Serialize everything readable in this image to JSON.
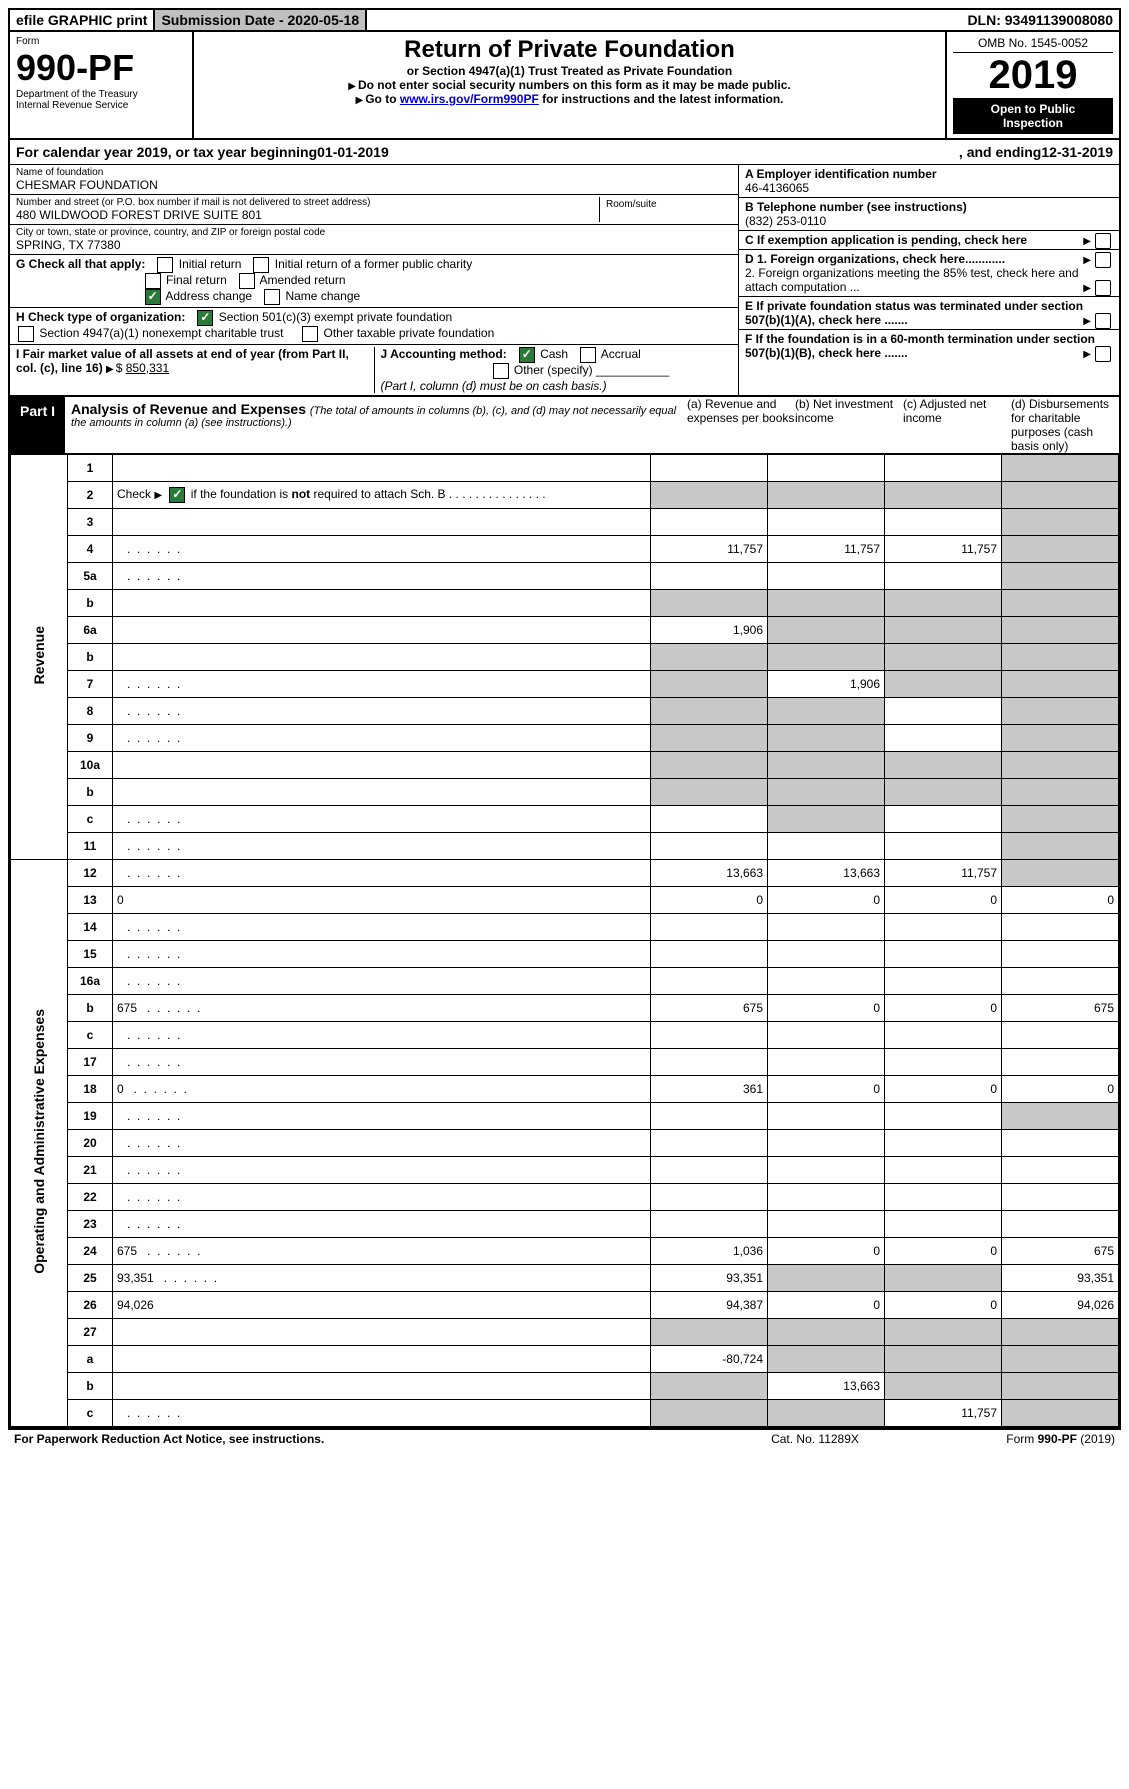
{
  "top": {
    "efile": "efile GRAPHIC print",
    "submission_label": "Submission Date - ",
    "submission_date": "2020-05-18",
    "dln_label": "DLN: ",
    "dln": "93491139008080"
  },
  "header": {
    "form_word": "Form",
    "form_number": "990-PF",
    "dept1": "Department of the Treasury",
    "dept2": "Internal Revenue Service",
    "title": "Return of Private Foundation",
    "subtitle": "or Section 4947(a)(1) Trust Treated as Private Foundation",
    "note1": "Do not enter social security numbers on this form as it may be made public.",
    "note2_pre": "Go to ",
    "note2_link": "www.irs.gov/Form990PF",
    "note2_post": " for instructions and the latest information.",
    "omb": "OMB No. 1545-0052",
    "year": "2019",
    "open1": "Open to Public",
    "open2": "Inspection"
  },
  "calyear": {
    "text1": "For calendar year 2019, or tax year beginning ",
    "begin": "01-01-2019",
    "text2": ", and ending ",
    "end": "12-31-2019"
  },
  "ident": {
    "name_label": "Name of foundation",
    "name": "CHESMAR FOUNDATION",
    "addr_label": "Number and street (or P.O. box number if mail is not delivered to street address)",
    "addr": "480 WILDWOOD FOREST DRIVE SUITE 801",
    "room_label": "Room/suite",
    "room": "",
    "city_label": "City or town, state or province, country, and ZIP or foreign postal code",
    "city": "SPRING, TX  77380",
    "a_label": "A Employer identification number",
    "a_val": "46-4136065",
    "b_label": "B Telephone number (see instructions)",
    "b_val": "(832) 253-0110",
    "c_label": "C If exemption application is pending, check here",
    "d1_label": "D 1. Foreign organizations, check here............",
    "d2_label": "2. Foreign organizations meeting the 85% test, check here and attach computation ...",
    "e_label": "E  If private foundation status was terminated under section 507(b)(1)(A), check here .......",
    "f_label": "F  If the foundation is in a 60-month termination under section 507(b)(1)(B), check here .......",
    "g_label": "G Check all that apply:",
    "g_opts": [
      "Initial return",
      "Initial return of a former public charity",
      "Final return",
      "Amended return",
      "Address change",
      "Name change"
    ],
    "h_label": "H Check type of organization:",
    "h_opts": [
      "Section 501(c)(3) exempt private foundation",
      "Section 4947(a)(1) nonexempt charitable trust",
      "Other taxable private foundation"
    ],
    "i_label": "I Fair market value of all assets at end of year (from Part II, col. (c), line 16) ",
    "i_val": "850,331",
    "j_label": "J Accounting method:",
    "j_opts": [
      "Cash",
      "Accrual"
    ],
    "j_other": "Other (specify)",
    "j_note": "(Part I, column (d) must be on cash basis.)"
  },
  "part1": {
    "label": "Part I",
    "title": "Analysis of Revenue and Expenses ",
    "title_note": "(The total of amounts in columns (b), (c), and (d) may not necessarily equal the amounts in column (a) (see instructions).)",
    "cols": {
      "a": "(a)   Revenue and expenses per books",
      "b": "(b)  Net investment income",
      "c": "(c)  Adjusted net income",
      "d": "(d)  Disbursements for charitable purposes (cash basis only)"
    }
  },
  "revenue_label": "Revenue",
  "expense_label": "Operating and Administrative Expenses",
  "rows": [
    {
      "n": "1",
      "d": "",
      "a": "",
      "b": "",
      "c": "",
      "shade": [
        "d"
      ]
    },
    {
      "n": "2",
      "d": "",
      "a": "",
      "b": "",
      "c": "",
      "shade": [
        "a",
        "b",
        "c",
        "d"
      ],
      "special": "check"
    },
    {
      "n": "3",
      "d": "",
      "a": "",
      "b": "",
      "c": "",
      "shade": [
        "d"
      ]
    },
    {
      "n": "4",
      "d": "",
      "a": "11,757",
      "b": "11,757",
      "c": "11,757",
      "shade": [
        "d"
      ],
      "dots": true
    },
    {
      "n": "5a",
      "d": "",
      "a": "",
      "b": "",
      "c": "",
      "shade": [
        "d"
      ],
      "dots": true
    },
    {
      "n": "b",
      "d": "",
      "a": "",
      "b": "",
      "c": "",
      "shade": [
        "a",
        "b",
        "c",
        "d"
      ]
    },
    {
      "n": "6a",
      "d": "",
      "a": "1,906",
      "b": "",
      "c": "",
      "shade": [
        "b",
        "c",
        "d"
      ]
    },
    {
      "n": "b",
      "d": "",
      "a": "",
      "b": "",
      "c": "",
      "shade": [
        "a",
        "b",
        "c",
        "d"
      ]
    },
    {
      "n": "7",
      "d": "",
      "a": "",
      "b": "1,906",
      "c": "",
      "shade": [
        "a",
        "c",
        "d"
      ],
      "dots": true
    },
    {
      "n": "8",
      "d": "",
      "a": "",
      "b": "",
      "c": "",
      "shade": [
        "a",
        "b",
        "d"
      ],
      "dots": true
    },
    {
      "n": "9",
      "d": "",
      "a": "",
      "b": "",
      "c": "",
      "shade": [
        "a",
        "b",
        "d"
      ],
      "dots": true
    },
    {
      "n": "10a",
      "d": "",
      "a": "",
      "b": "",
      "c": "",
      "shade": [
        "a",
        "b",
        "c",
        "d"
      ]
    },
    {
      "n": "b",
      "d": "",
      "a": "",
      "b": "",
      "c": "",
      "shade": [
        "a",
        "b",
        "c",
        "d"
      ]
    },
    {
      "n": "c",
      "d": "",
      "a": "",
      "b": "",
      "c": "",
      "shade": [
        "b",
        "d"
      ],
      "dots": true
    },
    {
      "n": "11",
      "d": "",
      "a": "",
      "b": "",
      "c": "",
      "shade": [
        "d"
      ],
      "dots": true
    },
    {
      "n": "12",
      "d": "",
      "a": "13,663",
      "b": "13,663",
      "c": "11,757",
      "shade": [
        "d"
      ],
      "dots": true
    },
    {
      "n": "13",
      "d": "0",
      "a": "0",
      "b": "0",
      "c": "0"
    },
    {
      "n": "14",
      "d": "",
      "a": "",
      "b": "",
      "c": "",
      "dots": true
    },
    {
      "n": "15",
      "d": "",
      "a": "",
      "b": "",
      "c": "",
      "dots": true
    },
    {
      "n": "16a",
      "d": "",
      "a": "",
      "b": "",
      "c": "",
      "dots": true
    },
    {
      "n": "b",
      "d": "675",
      "a": "675",
      "b": "0",
      "c": "0",
      "dots": true
    },
    {
      "n": "c",
      "d": "",
      "a": "",
      "b": "",
      "c": "",
      "dots": true
    },
    {
      "n": "17",
      "d": "",
      "a": "",
      "b": "",
      "c": "",
      "dots": true
    },
    {
      "n": "18",
      "d": "0",
      "a": "361",
      "b": "0",
      "c": "0",
      "dots": true
    },
    {
      "n": "19",
      "d": "",
      "a": "",
      "b": "",
      "c": "",
      "shade": [
        "d"
      ],
      "dots": true
    },
    {
      "n": "20",
      "d": "",
      "a": "",
      "b": "",
      "c": "",
      "dots": true
    },
    {
      "n": "21",
      "d": "",
      "a": "",
      "b": "",
      "c": "",
      "dots": true
    },
    {
      "n": "22",
      "d": "",
      "a": "",
      "b": "",
      "c": "",
      "dots": true
    },
    {
      "n": "23",
      "d": "",
      "a": "",
      "b": "",
      "c": "",
      "dots": true
    },
    {
      "n": "24",
      "d": "675",
      "a": "1,036",
      "b": "0",
      "c": "0",
      "dots": true
    },
    {
      "n": "25",
      "d": "93,351",
      "a": "93,351",
      "b": "",
      "c": "",
      "shade": [
        "b",
        "c"
      ],
      "dots": true
    },
    {
      "n": "26",
      "d": "94,026",
      "a": "94,387",
      "b": "0",
      "c": "0"
    },
    {
      "n": "27",
      "d": "",
      "a": "",
      "b": "",
      "c": "",
      "shade": [
        "a",
        "b",
        "c",
        "d"
      ]
    },
    {
      "n": "a",
      "d": "",
      "a": "-80,724",
      "b": "",
      "c": "",
      "shade": [
        "b",
        "c",
        "d"
      ]
    },
    {
      "n": "b",
      "d": "",
      "a": "",
      "b": "13,663",
      "c": "",
      "shade": [
        "a",
        "c",
        "d"
      ]
    },
    {
      "n": "c",
      "d": "",
      "a": "",
      "b": "",
      "c": "11,757",
      "shade": [
        "a",
        "b",
        "d"
      ],
      "dots": true
    }
  ],
  "footer": {
    "left": "For Paperwork Reduction Act Notice, see instructions.",
    "mid": "Cat. No. 11289X",
    "right": "Form 990-PF (2019)"
  }
}
